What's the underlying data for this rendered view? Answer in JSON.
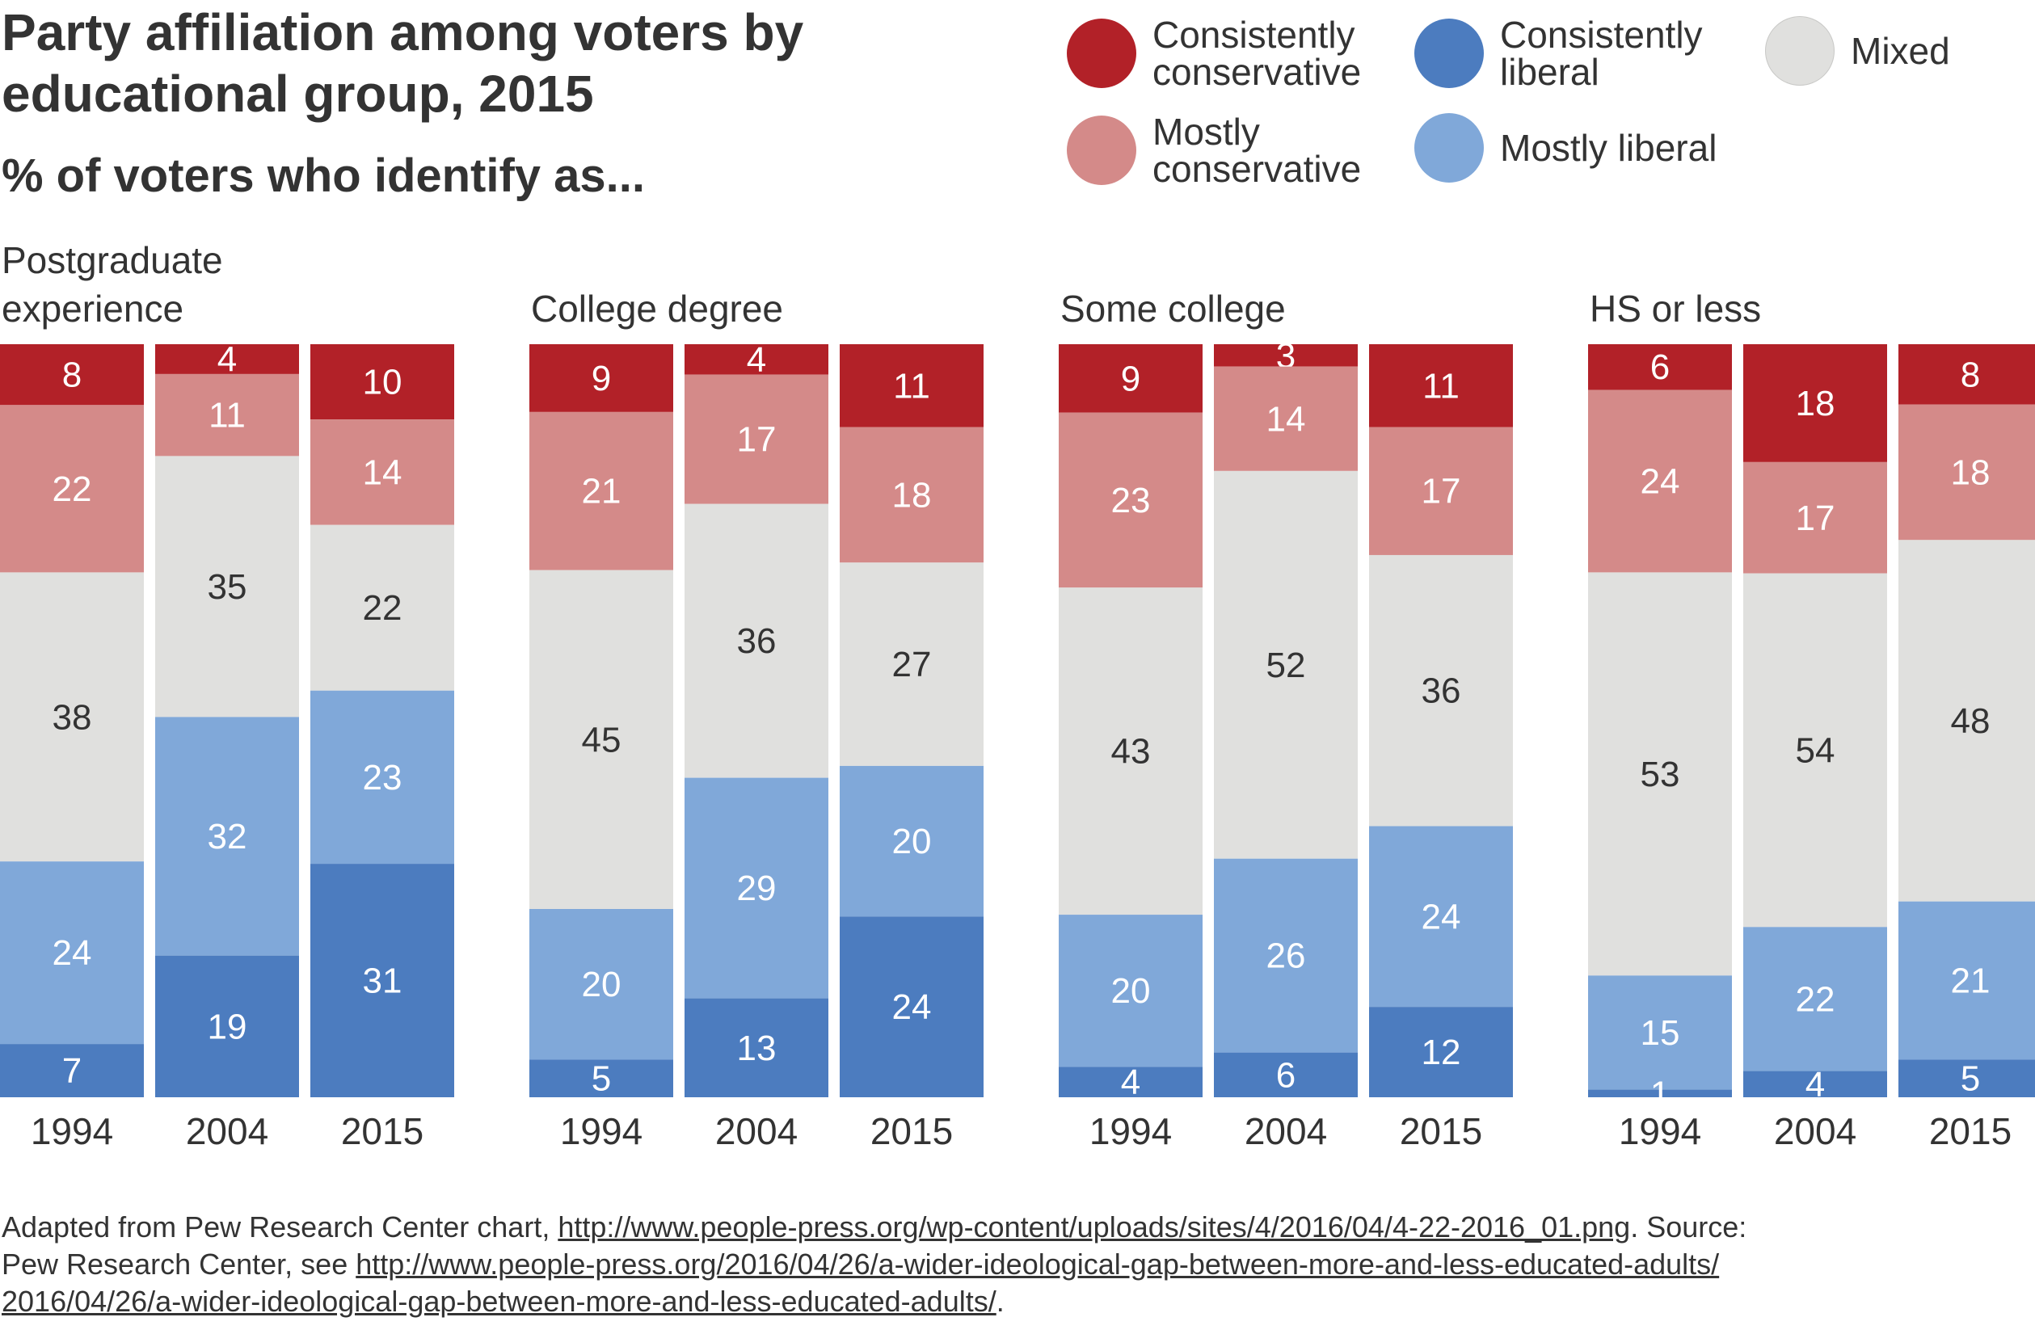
{
  "header": {
    "title": "Party affiliation among voters by educational group, 2015",
    "subtitle": "% of voters who identify as..."
  },
  "legend": [
    {
      "key": "cc",
      "label": "Consistently conservative",
      "color": "#B22128"
    },
    {
      "key": "cl",
      "label": "Consistently liberal",
      "color": "#4C7CBF"
    },
    {
      "key": "mx",
      "label": "Mixed",
      "color": "#E0E0DE"
    },
    {
      "key": "mc",
      "label": "Mostly conservative",
      "color": "#D48A89"
    },
    {
      "key": "ml",
      "label": "Mostly liberal",
      "color": "#80A8D9"
    }
  ],
  "chart_data": {
    "type": "bar",
    "stacked": true,
    "percent_stacked": true,
    "categories": [
      "1994",
      "2004",
      "2015"
    ],
    "series_order_top_to_bottom": [
      "Consistently conservative",
      "Mostly conservative",
      "Mixed",
      "Mostly liberal",
      "Consistently liberal"
    ],
    "series_colors": [
      "#B22128",
      "#D48A89",
      "#E0E0DE",
      "#80A8D9",
      "#4C7CBF"
    ],
    "panels": [
      {
        "name": "Postgraduate experience",
        "values": [
          [
            8,
            22,
            38,
            24,
            7
          ],
          [
            4,
            11,
            35,
            32,
            19
          ],
          [
            10,
            14,
            22,
            23,
            31
          ]
        ]
      },
      {
        "name": "College degree",
        "values": [
          [
            9,
            21,
            45,
            20,
            5
          ],
          [
            4,
            17,
            36,
            29,
            13
          ],
          [
            11,
            18,
            27,
            20,
            24
          ]
        ]
      },
      {
        "name": "Some college",
        "values": [
          [
            9,
            23,
            43,
            20,
            4
          ],
          [
            3,
            14,
            52,
            26,
            6
          ],
          [
            11,
            17,
            36,
            24,
            12
          ]
        ]
      },
      {
        "name": "HS or less",
        "values": [
          [
            6,
            24,
            53,
            15,
            1
          ],
          [
            18,
            17,
            54,
            22,
            4
          ],
          [
            8,
            18,
            48,
            21,
            5
          ]
        ]
      }
    ]
  },
  "footer": {
    "line1_text": "Adapted from Pew Research Center chart, ",
    "line1_link": "http://www.people-press.org/wp-content/uploads/sites/4/2016/04/4-22-2016_01.png",
    "line1_after": ". Source:",
    "line2_text": "Pew Research Center, see ",
    "line2_link": "http://www.people-press.org/2016/04/26/a-wider-ideological-gap-between-more-and-less-educated-adults/",
    "line3_link": "2016/04/26/a-wider-ideological-gap-between-more-and-less-educated-adults/",
    "line3_after": "."
  }
}
